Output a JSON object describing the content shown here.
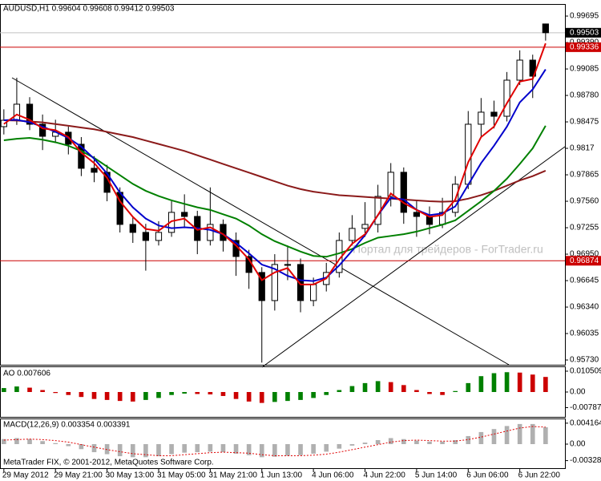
{
  "chart_data": {
    "type": "candlestick",
    "title": "AUDUSD,H1  0.99604 0.99608 0.99412 0.99503",
    "watermark": "Портал для трейдеров - ForTrader.ru",
    "footer": "MetaTrader FIX, © 2001-2012, MetaQuotes Software Corp.",
    "xlim": [
      -0.3,
      43.5
    ],
    "xticks": [
      {
        "value": 0,
        "label": "29 May 2012"
      },
      {
        "value": 4,
        "label": "29 May 21:00"
      },
      {
        "value": 8,
        "label": "30 May 13:00"
      },
      {
        "value": 12,
        "label": "31 May 05:00"
      },
      {
        "value": 16,
        "label": "31 May 21:00"
      },
      {
        "value": 20,
        "label": "1 Jun 13:00"
      },
      {
        "value": 24,
        "label": "4 Jun 06:00"
      },
      {
        "value": 28,
        "label": "4 Jun 22:00"
      },
      {
        "value": 32,
        "label": "5 Jun 14:00"
      },
      {
        "value": 36,
        "label": "6 Jun 06:00"
      },
      {
        "value": 40,
        "label": "6 Jun 22:00"
      }
    ],
    "ylim": [
      0.95675,
      0.99834
    ],
    "yticks": [
      0.99695,
      {
        "value": 0.9939,
        "label": "0.99390"
      },
      0.99085,
      {
        "value": 0.9878,
        "label": "0.98780"
      },
      0.98475,
      0.9817,
      0.97865,
      {
        "value": 0.9756,
        "label": "0.97560"
      },
      0.97255,
      {
        "value": 0.9695,
        "label": "0.96950"
      },
      0.96645,
      {
        "value": 0.9634,
        "label": "0.96340"
      },
      0.96035,
      {
        "value": 0.9573,
        "label": "0.95730"
      }
    ],
    "candles": {
      "open": [
        0.9842,
        0.98494,
        0.98679,
        0.98448,
        0.98309,
        0.98356,
        0.98217,
        0.9794,
        0.97894,
        0.97663,
        0.97293,
        0.97201,
        0.97108,
        0.97201,
        0.97432,
        0.97385,
        0.97108,
        0.97293,
        0.97108,
        0.96923,
        0.96739,
        0.96415,
        0.96831,
        0.96831,
        0.96415,
        0.966,
        0.96739,
        0.97108,
        0.97247,
        0.97293,
        0.97616,
        0.97894,
        0.97432,
        0.97385,
        0.97293,
        0.97432,
        0.97756,
        0.98448,
        0.98587,
        0.9854,
        0.98956,
        0.99187,
        0.99604
      ],
      "high": [
        0.9862,
        0.98984,
        0.9876,
        0.9856,
        0.985,
        0.9842,
        0.983,
        0.9808,
        0.9798,
        0.9772,
        0.9738,
        0.973,
        0.9733,
        0.9756,
        0.9764,
        0.9745,
        0.9772,
        0.9735,
        0.972,
        0.97,
        0.968,
        0.9695,
        0.9705,
        0.969,
        0.9668,
        0.9685,
        0.972,
        0.974,
        0.9755,
        0.9775,
        0.98,
        0.9795,
        0.9756,
        0.975,
        0.976,
        0.9785,
        0.986,
        0.9875,
        0.9872,
        0.9905,
        0.993,
        0.9925,
        0.99608
      ],
      "low": [
        0.9833,
        0.9844,
        0.9838,
        0.9815,
        0.9823,
        0.981,
        0.9785,
        0.9778,
        0.9756,
        0.972,
        0.9708,
        0.9676,
        0.9705,
        0.9715,
        0.9725,
        0.9695,
        0.9705,
        0.9698,
        0.967,
        0.9655,
        0.957,
        0.963,
        0.9665,
        0.9628,
        0.9635,
        0.9652,
        0.9668,
        0.9705,
        0.9715,
        0.972,
        0.975,
        0.973,
        0.9715,
        0.9718,
        0.9725,
        0.9738,
        0.977,
        0.983,
        0.984,
        0.9848,
        0.989,
        0.9875,
        0.99412
      ],
      "close": [
        0.98494,
        0.98679,
        0.98448,
        0.98309,
        0.98356,
        0.98217,
        0.9794,
        0.97894,
        0.97663,
        0.97293,
        0.97201,
        0.97108,
        0.97201,
        0.97432,
        0.97385,
        0.97108,
        0.97293,
        0.97108,
        0.96923,
        0.96739,
        0.96415,
        0.96831,
        0.96831,
        0.96415,
        0.966,
        0.96739,
        0.97108,
        0.97247,
        0.97293,
        0.97616,
        0.97894,
        0.97432,
        0.97385,
        0.97293,
        0.97432,
        0.97756,
        0.98448,
        0.98587,
        0.9854,
        0.98956,
        0.99187,
        0.99002,
        0.99503
      ],
      "up_color": "#ffffff",
      "down_color": "#000000",
      "edge_color": "#000000"
    },
    "series": [
      {
        "color": "#8b1a1a",
        "values": [
          0.98494,
          0.9849,
          0.9848,
          0.9847,
          0.9845,
          0.9843,
          0.9841,
          0.9839,
          0.9836,
          0.9833,
          0.983,
          0.9826,
          0.9822,
          0.9818,
          0.9814,
          0.9809,
          0.9804,
          0.9799,
          0.9794,
          0.9789,
          0.9784,
          0.9779,
          0.9774,
          0.977,
          0.9767,
          0.9765,
          0.9763,
          0.9762,
          0.9761,
          0.976,
          0.9759,
          0.9758,
          0.9757,
          0.9756,
          0.97555,
          0.9756,
          0.9759,
          0.9763,
          0.9768,
          0.9774,
          0.978,
          0.9785,
          0.97912
        ]
      },
      {
        "color": "#008000",
        "values": [
          0.98263,
          0.9828,
          0.9829,
          0.9827,
          0.9824,
          0.982,
          0.9814,
          0.9806,
          0.9796,
          0.9786,
          0.9776,
          0.9768,
          0.9762,
          0.9757,
          0.9753,
          0.9749,
          0.9746,
          0.9741,
          0.9736,
          0.9728,
          0.9718,
          0.971,
          0.9704,
          0.9698,
          0.9693,
          0.9692,
          0.9696,
          0.9701,
          0.9708,
          0.9714,
          0.9716,
          0.9718,
          0.9721,
          0.9725,
          0.9729,
          0.9734,
          0.9745,
          0.9756,
          0.9768,
          0.9782,
          0.9799,
          0.9817,
          0.9843
        ]
      },
      {
        "color": "#0000cc",
        "values": [
          0.98494,
          0.985,
          0.9847,
          0.9842,
          0.9836,
          0.9829,
          0.9819,
          0.9805,
          0.9788,
          0.9766,
          0.9749,
          0.9736,
          0.9728,
          0.9725,
          0.9726,
          0.9725,
          0.9723,
          0.9718,
          0.9708,
          0.9696,
          0.9683,
          0.9678,
          0.967,
          0.9665,
          0.9664,
          0.9668,
          0.9682,
          0.9699,
          0.9717,
          0.974,
          0.976,
          0.9758,
          0.9746,
          0.974,
          0.9742,
          0.975,
          0.9775,
          0.98,
          0.982,
          0.9842,
          0.987,
          0.9885,
          0.9908
        ]
      },
      {
        "color": "#e00000",
        "values": [
          0.9845,
          0.9856,
          0.985,
          0.984,
          0.9838,
          0.983,
          0.9812,
          0.98,
          0.9783,
          0.9756,
          0.9738,
          0.9724,
          0.9722,
          0.9733,
          0.9736,
          0.9723,
          0.9726,
          0.9718,
          0.9705,
          0.9689,
          0.9665,
          0.9674,
          0.9679,
          0.966,
          0.966,
          0.9667,
          0.9689,
          0.9707,
          0.9718,
          0.974,
          0.9765,
          0.9754,
          0.9746,
          0.9738,
          0.974,
          0.9758,
          0.9801,
          0.983,
          0.9842,
          0.9869,
          0.9894,
          0.9897,
          0.9938
        ]
      }
    ],
    "last_price": 0.99503,
    "last_color": "#000000",
    "levels": [
      {
        "value": 0.99336,
        "color": "#cc0000"
      },
      {
        "value": 0.96874,
        "color": "#cc0000"
      }
    ],
    "indicators": [
      {
        "type": "histogram",
        "label": "AO 0.007606",
        "ylim": [
          -0.01253,
          0.01213
        ],
        "yticks": [
          0.010509,
          {
            "value": 0,
            "label": "0.00"
          },
          -0.00787
        ],
        "up_color": "#008000",
        "down_color": "#cc0000",
        "values": [
          0.002,
          0.0028,
          0.0022,
          0.001,
          -0.0005,
          -0.0015,
          -0.0025,
          -0.0035,
          -0.004,
          -0.0045,
          -0.0048,
          -0.004,
          -0.003,
          -0.0015,
          -0.0008,
          -0.001,
          -0.0012,
          -0.002,
          -0.0035,
          -0.0048,
          -0.0055,
          -0.005,
          -0.0045,
          -0.004,
          -0.003,
          -0.0015,
          0.001,
          0.003,
          0.0045,
          0.0055,
          0.005,
          0.0035,
          0.001,
          -0.001,
          -0.0015,
          0.0005,
          0.0045,
          0.008,
          0.0095,
          0.01,
          0.0098,
          0.0088,
          0.007606
        ]
      },
      {
        "type": "macd",
        "label": "MACD(12,26,9) 0.003354 0.003391",
        "ylim": [
          -0.00478,
          0.00478
        ],
        "yticks": [
          0.004164,
          {
            "value": 0,
            "label": "0.00"
          },
          -0.00328
        ],
        "color": "#b0b0b0",
        "values": [
          0.001,
          0.0012,
          0.001,
          0.0006,
          0.0002,
          -0.0004,
          -0.001,
          -0.0016,
          -0.002,
          -0.0024,
          -0.0026,
          -0.0026,
          -0.0024,
          -0.002,
          -0.0017,
          -0.0016,
          -0.0015,
          -0.0016,
          -0.0019,
          -0.0022,
          -0.0026,
          -0.0025,
          -0.0023,
          -0.0022,
          -0.0019,
          -0.0015,
          -0.0009,
          -0.0003,
          0.0003,
          0.0008,
          0.0012,
          0.001,
          0.0007,
          0.0005,
          0.0005,
          0.0008,
          0.0016,
          0.0024,
          0.003,
          0.0036,
          0.004,
          0.004,
          0.003354
        ],
        "signal": {
          "color": "#e00000",
          "values": [
            0.0008,
            0.0009,
            0.001,
            0.0009,
            0.0007,
            0.0004,
            -0.0001,
            -0.0006,
            -0.0011,
            -0.0015,
            -0.0019,
            -0.0021,
            -0.0023,
            -0.0023,
            -0.0021,
            -0.0019,
            -0.0017,
            -0.0016,
            -0.0017,
            -0.0018,
            -0.0021,
            -0.0023,
            -0.0023,
            -0.0023,
            -0.0022,
            -0.002,
            -0.0016,
            -0.0011,
            -0.0006,
            -0.0001,
            0.0004,
            0.0007,
            0.0008,
            0.0007,
            0.0006,
            0.0006,
            0.0009,
            0.0014,
            0.002,
            0.0026,
            0.0032,
            0.0035,
            0.003391
          ]
        }
      }
    ]
  }
}
